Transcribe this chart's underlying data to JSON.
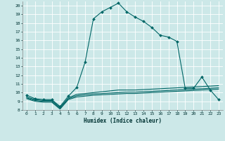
{
  "title": "",
  "xlabel": "Humidex (Indice chaleur)",
  "xlim": [
    -0.5,
    23.5
  ],
  "ylim": [
    8,
    20.5
  ],
  "yticks": [
    8,
    9,
    10,
    11,
    12,
    13,
    14,
    15,
    16,
    17,
    18,
    19,
    20
  ],
  "xticks": [
    0,
    1,
    2,
    3,
    4,
    5,
    6,
    7,
    8,
    9,
    10,
    11,
    12,
    13,
    14,
    15,
    16,
    17,
    18,
    19,
    20,
    21,
    22,
    23
  ],
  "bg_color": "#cce8e8",
  "grid_color": "#ffffff",
  "line_color": "#006666",
  "series1": [
    9.7,
    9.3,
    9.2,
    9.2,
    8.4,
    9.6,
    10.6,
    13.5,
    18.5,
    19.3,
    19.8,
    20.3,
    19.3,
    18.7,
    18.2,
    17.5,
    16.6,
    16.4,
    15.9,
    10.5,
    10.5,
    11.8,
    10.3,
    9.2
  ],
  "series2": [
    9.5,
    9.2,
    9.1,
    9.1,
    8.3,
    9.4,
    9.8,
    9.9,
    10.0,
    10.1,
    10.2,
    10.3,
    10.3,
    10.3,
    10.35,
    10.4,
    10.45,
    10.5,
    10.55,
    10.6,
    10.65,
    10.7,
    10.75,
    10.8
  ],
  "series3": [
    9.4,
    9.1,
    9.0,
    9.0,
    8.2,
    9.3,
    9.65,
    9.75,
    9.85,
    9.9,
    9.95,
    10.0,
    10.05,
    10.05,
    10.1,
    10.15,
    10.2,
    10.25,
    10.3,
    10.35,
    10.4,
    10.45,
    10.5,
    10.55
  ],
  "series4": [
    9.3,
    9.0,
    8.9,
    8.9,
    8.1,
    9.2,
    9.5,
    9.6,
    9.7,
    9.75,
    9.8,
    9.85,
    9.9,
    9.9,
    9.95,
    10.0,
    10.05,
    10.1,
    10.15,
    10.2,
    10.25,
    10.3,
    10.35,
    10.4
  ],
  "markersize": 2.0,
  "linewidth": 0.8
}
